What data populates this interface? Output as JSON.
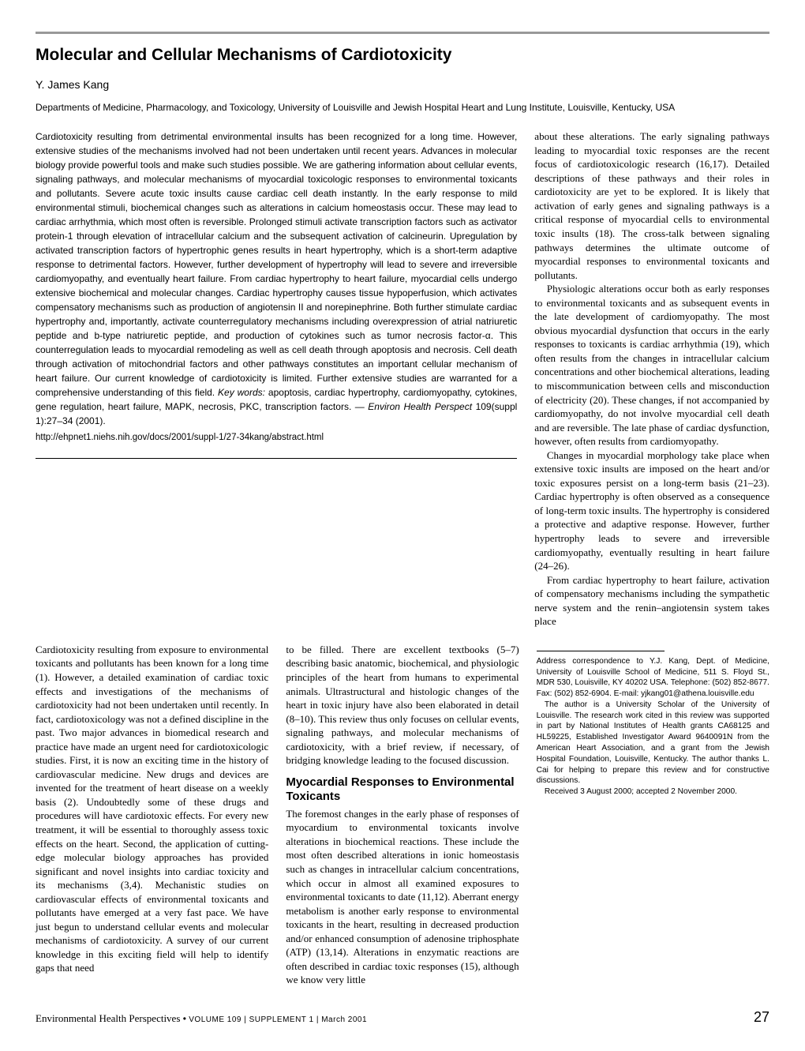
{
  "title": "Molecular and Cellular Mechanisms of Cardiotoxicity",
  "author": "Y. James Kang",
  "affiliation": "Departments of Medicine, Pharmacology, and Toxicology, University of Louisville and Jewish Hospital Heart and Lung Institute, Louisville, Kentucky, USA",
  "abstract": {
    "body": "Cardiotoxicity resulting from detrimental environmental insults has been recognized for a long time. However, extensive studies of the mechanisms involved had not been undertaken until recent years. Advances in molecular biology provide powerful tools and make such studies possible. We are gathering information about cellular events, signaling pathways, and molecular mechanisms of myocardial toxicologic responses to environmental toxicants and pollutants. Severe acute toxic insults cause cardiac cell death instantly. In the early response to mild environmental stimuli, biochemical changes such as alterations in calcium homeostasis occur. These may lead to cardiac arrhythmia, which most often is reversible. Prolonged stimuli activate transcription factors such as activator protein-1 through elevation of intracellular calcium and the subsequent activation of calcineurin. Upregulation by activated transcription factors of hypertrophic genes results in heart hypertrophy, which is a short-term adaptive response to detrimental factors. However, further development of hypertrophy will lead to severe and irreversible cardiomyopathy, and eventually heart failure. From cardiac hypertrophy to heart failure, myocardial cells undergo extensive biochemical and molecular changes. Cardiac hypertrophy causes tissue hypoperfusion, which activates compensatory mechanisms such as production of angiotensin II and norepinephrine. Both further stimulate cardiac hypertrophy and, importantly, activate counterregulatory mechanisms including overexpression of atrial natriuretic peptide and b-type natriuretic peptide, and production of cytokines such as tumor necrosis factor-α. This counterregulation leads to myocardial remodeling as well as cell death through apoptosis and necrosis. Cell death through activation of mitochondrial factors and other pathways constitutes an important cellular mechanism of heart failure. Our current knowledge of cardiotoxicity is limited. Further extensive studies are warranted for a comprehensive understanding of this field. ",
    "keywords_label": "Key words:",
    "keywords": " apoptosis, cardiac hypertrophy, cardiomyopathy, cytokines, gene regulation, heart failure, MAPK, necrosis, PKC, transcription factors. — ",
    "citation_ital": "Environ Health Perspect ",
    "citation_rest": "109(suppl 1):27–34 (2001).",
    "url": "http://ehpnet1.niehs.nih.gov/docs/2001/suppl-1/27-34kang/abstract.html"
  },
  "intro_right": [
    "about these alterations. The early signaling pathways leading to myocardial toxic responses are the recent focus of cardiotoxicologic research (16,17). Detailed descriptions of these pathways and their roles in cardiotoxicity are yet to be explored. It is likely that activation of early genes and signaling pathways is a critical response of myocardial cells to environmental toxic insults (18). The cross-talk between signaling pathways determines the ultimate outcome of myocardial responses to environmental toxicants and pollutants.",
    "Physiologic alterations occur both as early responses to environmental toxicants and as subsequent events in the late development of cardiomyopathy. The most obvious myocardial dysfunction that occurs in the early responses to toxicants is cardiac arrhythmia (19), which often results from the changes in intracellular calcium concentrations and other biochemical alterations, leading to miscommunication between cells and misconduction of electricity (20). These changes, if not accompanied by cardiomyopathy, do not involve myocardial cell death and are reversible. The late phase of cardiac dysfunction, however, often results from cardiomyopathy.",
    "Changes in myocardial morphology take place when extensive toxic insults are imposed on the heart and/or toxic exposures persist on a long-term basis (21–23). Cardiac hypertrophy is often observed as a consequence of long-term toxic insults. The hypertrophy is considered a protective and adaptive response. However, further hypertrophy leads to severe and irreversible cardiomyopathy, eventually resulting in heart failure (24–26).",
    "From cardiac hypertrophy to heart failure, activation of compensatory mechanisms including the sympathetic nerve system and the renin–angiotensin system takes place"
  ],
  "col1": [
    "Cardiotoxicity resulting from exposure to environmental toxicants and pollutants has been known for a long time (1). However, a detailed examination of cardiac toxic effects and investigations of the mechanisms of cardiotoxicity had not been undertaken until recently. In fact, cardiotoxicology was not a defined discipline in the past. Two major advances in biomedical research and practice have made an urgent need for cardiotoxicologic studies. First, it is now an exciting time in the history of cardiovascular medicine. New drugs and devices are invented for the treatment of heart disease on a weekly basis (2). Undoubtedly some of these drugs and procedures will have cardiotoxic effects. For every new treatment, it will be essential to thoroughly assess toxic effects on the heart. Second, the application of cutting-edge molecular biology approaches has provided significant and novel insights into cardiac toxicity and its mechanisms (3,4). Mechanistic studies on cardiovascular effects of environmental toxicants and pollutants have emerged at a very fast pace. We have just begun to understand cellular events and molecular mechanisms of cardiotoxicity. A survey of our current knowledge in this exciting field will help to identify gaps that need"
  ],
  "col2": {
    "para1": "to be filled. There are excellent textbooks (5–7) describing basic anatomic, biochemical, and physiologic principles of the heart from humans to experimental animals. Ultrastructural and histologic changes of the heart in toxic injury have also been elaborated in detail (8–10). This review thus only focuses on cellular events, signaling pathways, and molecular mechanisms of cardiotoxicity, with a brief review, if necessary, of bridging knowledge leading to the focused discussion.",
    "section_head": "Myocardial Responses to Environmental Toxicants",
    "para2": "The foremost changes in the early phase of responses of myocardium to environmental toxicants involve alterations in biochemical reactions. These include the most often described alterations in ionic homeostasis such as changes in intracellular calcium concentrations, which occur in almost all examined exposures to environmental toxicants to date (11,12). Aberrant energy metabolism is another early response to environmental toxicants in the heart, resulting in decreased production and/or enhanced consumption of adenosine triphosphate (ATP) (13,14). Alterations in enzymatic reactions are often described in cardiac toxic responses (15), although we know very little"
  },
  "correspondence": [
    "Address correspondence to Y.J. Kang, Dept. of Medicine, University of Louisville School of Medicine, 511 S. Floyd St., MDR 530, Louisville, KY 40202 USA. Telephone: (502) 852-8677. Fax: (502) 852-6904. E-mail: yjkang01@athena.louisville.edu",
    "The author is a University Scholar of the University of Louisville. The research work cited in this review was supported in part by National Institutes of Health grants CA68125 and HL59225, Established Investigator Award 9640091N from the American Heart Association, and a grant from the Jewish Hospital Foundation, Louisville, Kentucky. The author thanks L. Cai for helping to prepare this review and for constructive discussions.",
    "Received 3 August 2000; accepted 2 November 2000."
  ],
  "footer": {
    "journal": "Environmental Health Perspectives",
    "middot": " • ",
    "volume": "VOLUME 109 | SUPPLEMENT 1 | March 2001",
    "page": "27"
  },
  "colors": {
    "rule_gray": "#999999",
    "text": "#000000",
    "bg": "#ffffff"
  }
}
